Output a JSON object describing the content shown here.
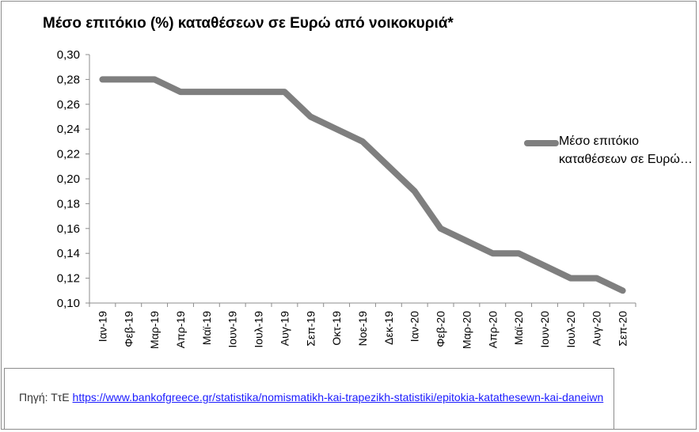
{
  "chart_data": {
    "type": "line",
    "title": "Μέσο επιτόκιο (%) καταθέσεων σε Ευρώ από νοικοκυριά*",
    "categories": [
      "Ιαν-19",
      "Φεβ-19",
      "Μαρ-19",
      "Απρ-19",
      "Μαϊ-19",
      "Ιουν-19",
      "Ιουλ-19",
      "Αυγ-19",
      "Σεπ-19",
      "Οκτ-19",
      "Νοε-19",
      "Δεκ-19",
      "Ιαν-20",
      "Φεβ-20",
      "Μαρ-20",
      "Απρ-20",
      "Μαϊ-20",
      "Ιουν-20",
      "Ιουλ-20",
      "Αυγ-20",
      "Σεπ-20"
    ],
    "series": [
      {
        "name": "Μέσο επιτόκιο καταθέσεων σε Ευρώ…",
        "color": "#7f7f7f",
        "values": [
          0.28,
          0.28,
          0.28,
          0.27,
          0.27,
          0.27,
          0.27,
          0.27,
          0.25,
          0.24,
          0.23,
          0.21,
          0.19,
          0.16,
          0.15,
          0.14,
          0.14,
          0.13,
          0.12,
          0.12,
          0.11
        ]
      }
    ],
    "ylim": [
      0.1,
      0.3
    ],
    "yticks": [
      "0,10",
      "0,12",
      "0,14",
      "0,16",
      "0,18",
      "0,20",
      "0,22",
      "0,24",
      "0,26",
      "0,28",
      "0,30"
    ],
    "grid": false,
    "legend_position": "right"
  },
  "legend": {
    "line1": "Μέσο επιτόκιο",
    "line2": "καταθέσεων σε Ευρώ…"
  },
  "source": {
    "prefix": "Πηγή: ΤτΕ ",
    "link": "https://www.bankofgreece.gr/statistika/nomismatikh-kai-trapezikh-statistiki/epitokia-katathesewn-kai-daneiwn"
  }
}
